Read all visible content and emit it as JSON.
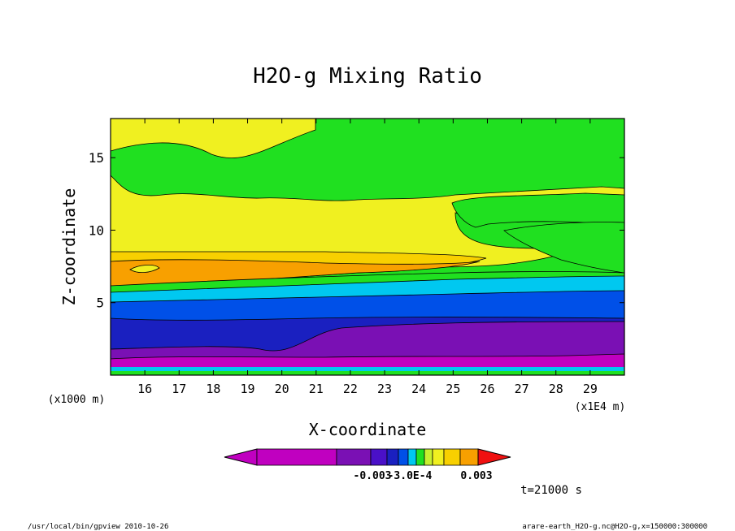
{
  "chart_data": {
    "type": "heatmap",
    "title": "H2O-g Mixing Ratio",
    "xlabel": "X-coordinate",
    "ylabel": "Z-coordinate",
    "x_unit": "(x1E4 m)",
    "y_unit": "(x1000 m)",
    "xlim": [
      15.0,
      30.0
    ],
    "ylim": [
      0.0,
      17.7
    ],
    "x_ticks": [
      "16",
      "17",
      "18",
      "19",
      "20",
      "21",
      "22",
      "23",
      "24",
      "25",
      "26",
      "27",
      "28",
      "29"
    ],
    "y_ticks": [
      "5",
      "10",
      "15"
    ],
    "colorbar_labels": [
      "-0.003",
      "-3.0E-4",
      "0.003"
    ],
    "layers": [
      {
        "band": "green",
        "top": 17.7
      },
      {
        "band": "yellow",
        "top": 13.5
      },
      {
        "band": "orange-yellow",
        "top": 8.6
      },
      {
        "band": "orange",
        "top": 8.1
      },
      {
        "band": "green",
        "top": 6.4
      },
      {
        "band": "cyan",
        "top": 6.0
      },
      {
        "band": "blue",
        "top": 5.2
      },
      {
        "band": "dark-blue",
        "top": 4.0
      },
      {
        "band": "purple",
        "top": 1.7
      },
      {
        "band": "magenta",
        "top": 0.9
      }
    ],
    "colors": {
      "magenta": "#c000c0",
      "purple": "#7a10b4",
      "indigo": "#4a10c8",
      "dark-blue": "#1a20c0",
      "blue": "#0050e8",
      "cyan": "#00c8f0",
      "green": "#20e020",
      "yellow-green": "#c8f030",
      "yellow": "#f0f020",
      "orange-yellow": "#f8d000",
      "orange": "#f8a000",
      "red": "#f01010"
    }
  },
  "annotations": {
    "time": "t=21000 s",
    "footer_left": "/usr/local/bin/gpview  2010-10-26",
    "footer_right": "arare-earth_H2O-g.nc@H2O-g,x=150000:300000"
  }
}
